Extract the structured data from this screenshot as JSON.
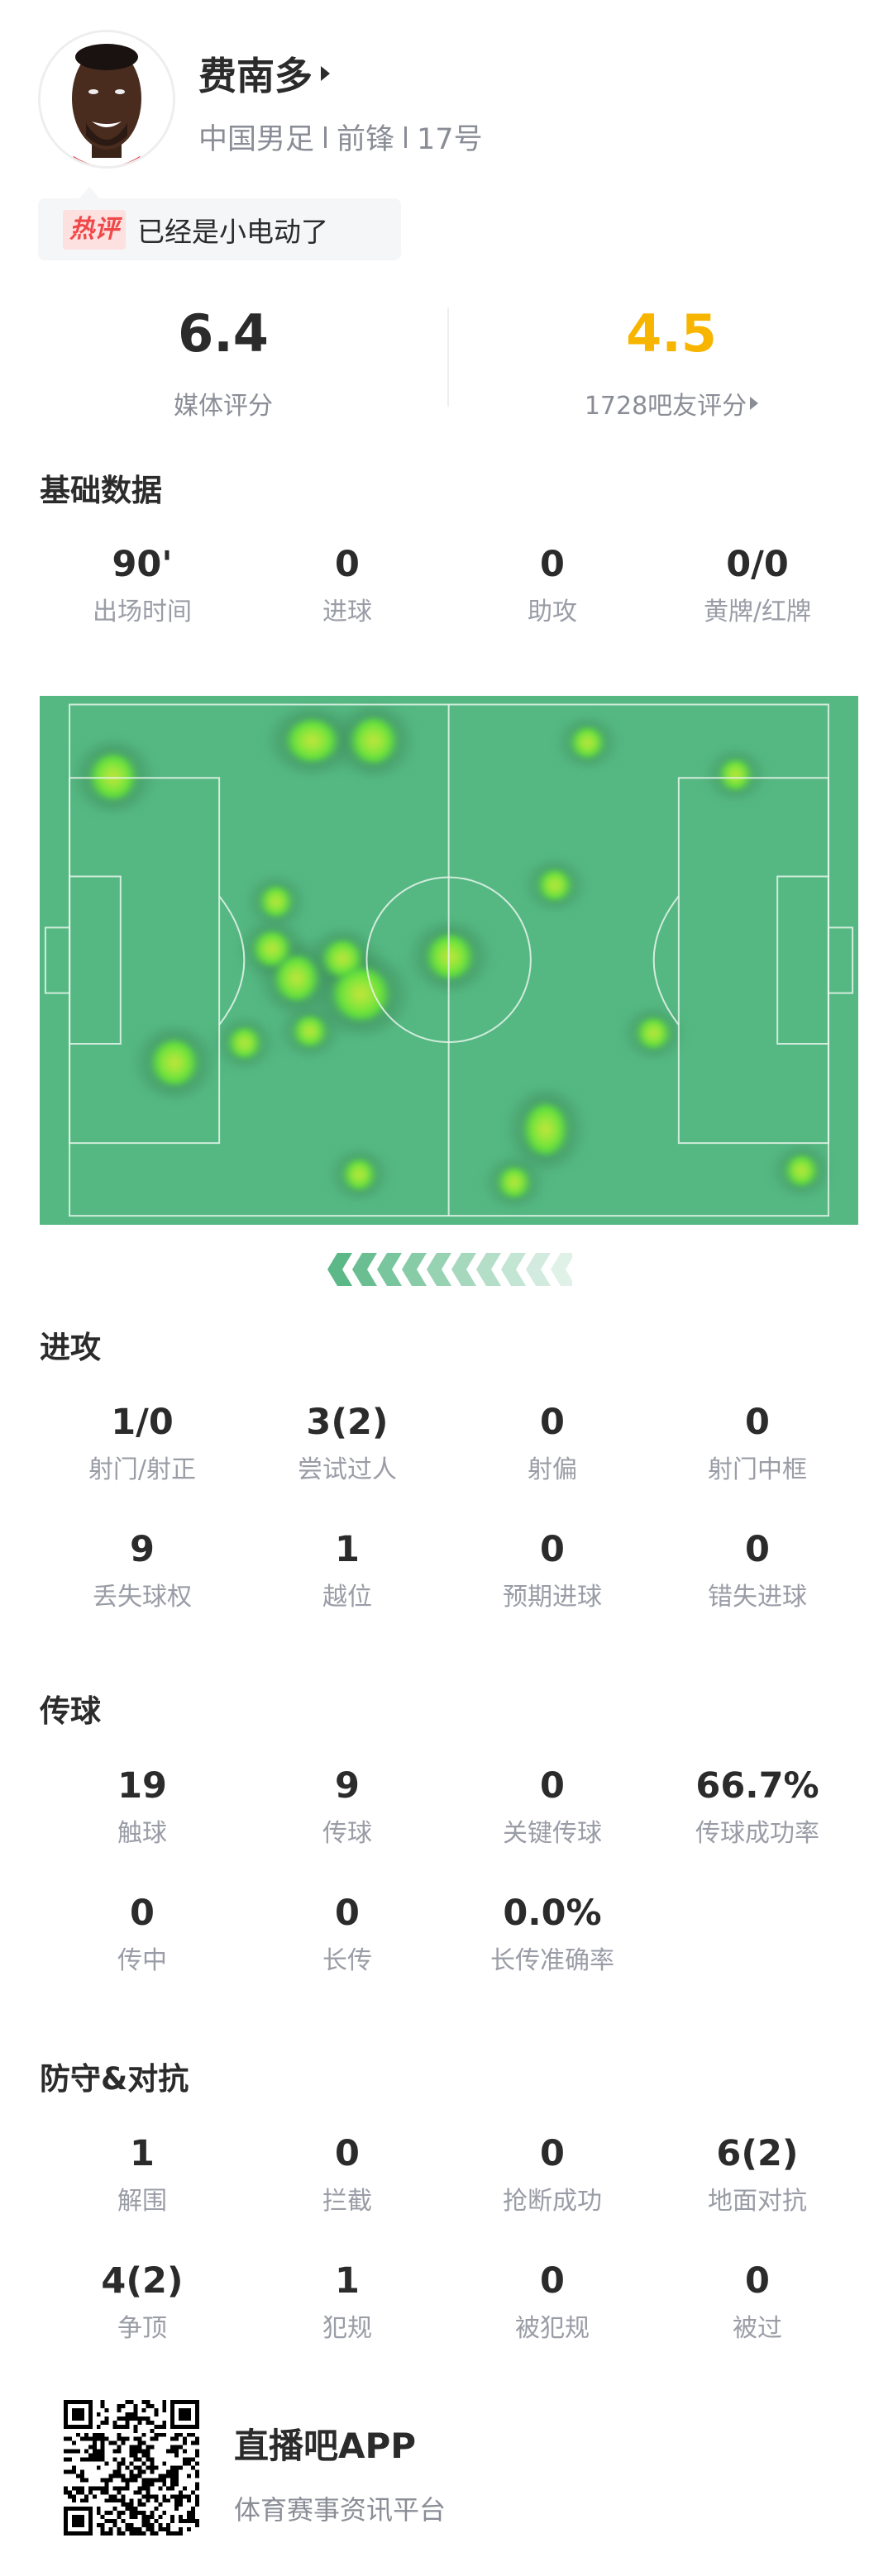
{
  "player": {
    "name": "费南多",
    "team": "中国男足",
    "position": "前锋",
    "number": "17号"
  },
  "hot_comment": {
    "tag": "热评",
    "text": "已经是小电动了"
  },
  "ratings": {
    "media_score": "6.4",
    "media_label": "媒体评分",
    "fan_score": "4.5",
    "fan_label": "1728吧友评分",
    "fan_color": "#f7b500"
  },
  "sections": [
    {
      "title": "基础数据",
      "rows": [
        [
          {
            "value": "90'",
            "label": "出场时间"
          },
          {
            "value": "0",
            "label": "进球"
          },
          {
            "value": "0",
            "label": "助攻"
          },
          {
            "value": "0/0",
            "label": "黄牌/红牌"
          }
        ]
      ]
    },
    {
      "title": "进攻",
      "rows": [
        [
          {
            "value": "1/0",
            "label": "射门/射正"
          },
          {
            "value": "3(2)",
            "label": "尝试过人"
          },
          {
            "value": "0",
            "label": "射偏"
          },
          {
            "value": "0",
            "label": "射门中框"
          }
        ],
        [
          {
            "value": "9",
            "label": "丢失球权"
          },
          {
            "value": "1",
            "label": "越位"
          },
          {
            "value": "0",
            "label": "预期进球"
          },
          {
            "value": "0",
            "label": "错失进球"
          }
        ]
      ]
    },
    {
      "title": "传球",
      "rows": [
        [
          {
            "value": "19",
            "label": "触球"
          },
          {
            "value": "9",
            "label": "传球"
          },
          {
            "value": "0",
            "label": "关键传球"
          },
          {
            "value": "66.7%",
            "label": "传球成功率"
          }
        ],
        [
          {
            "value": "0",
            "label": "传中"
          },
          {
            "value": "0",
            "label": "长传"
          },
          {
            "value": "0.0%",
            "label": "长传准确率"
          }
        ]
      ]
    },
    {
      "title": "防守&对抗",
      "rows": [
        [
          {
            "value": "1",
            "label": "解围"
          },
          {
            "value": "0",
            "label": "拦截"
          },
          {
            "value": "0",
            "label": "抢断成功"
          },
          {
            "value": "6(2)",
            "label": "地面对抗"
          }
        ],
        [
          {
            "value": "4(2)",
            "label": "争顶"
          },
          {
            "value": "1",
            "label": "犯规"
          },
          {
            "value": "0",
            "label": "被犯规"
          },
          {
            "value": "0",
            "label": "被过"
          }
        ]
      ]
    }
  ],
  "heatmap": {
    "pitch_color": "#55b882",
    "attack_direction": "left"
  },
  "footer": {
    "app_name": "直播吧APP",
    "app_subtitle": "体育赛事资讯平台"
  }
}
